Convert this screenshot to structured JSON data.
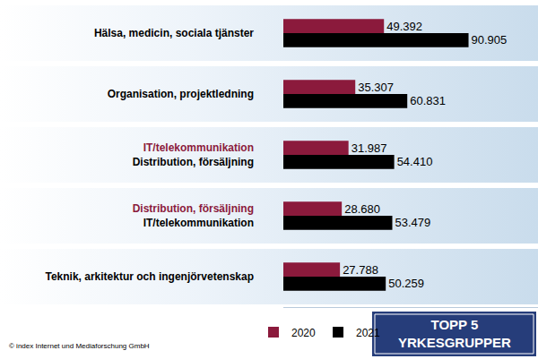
{
  "chart_data": {
    "type": "bar",
    "orientation": "horizontal",
    "title": "TOPP 5\nYRKESGRUPPER",
    "source": "© index Internet und Mediaforschung GmbH",
    "categories": [
      "Hälsa, medicin, sociala tjänster",
      "Organisation, projektledning",
      "Distribution, försäljning",
      "IT/telekommunikation",
      "Teknik, arkitektur och ingenjörvetenskap"
    ],
    "series": [
      {
        "name": "2020",
        "color": "#8b1a3c",
        "categories": [
          "Hälsa, medicin, sociala tjänster",
          "Organisation, projektledning",
          "IT/telekommunikation",
          "Distribution, försäljning",
          "Teknik, arkitektur och ingenjörvetenskap"
        ],
        "values": [
          49392,
          35307,
          31987,
          28680,
          27788
        ],
        "value_labels": [
          "49.392",
          "35.307",
          "31.987",
          "28.680",
          "27.788"
        ]
      },
      {
        "name": "2021",
        "color": "#000000",
        "values": [
          90905,
          60831,
          54410,
          53479,
          50259
        ],
        "value_labels": [
          "90.905",
          "60.831",
          "54.410",
          "53.479",
          "50.259"
        ]
      }
    ],
    "xlim": [
      0,
      125000
    ],
    "data_labels": true,
    "tick_labels": false,
    "legend": "bottom",
    "grid": false
  }
}
